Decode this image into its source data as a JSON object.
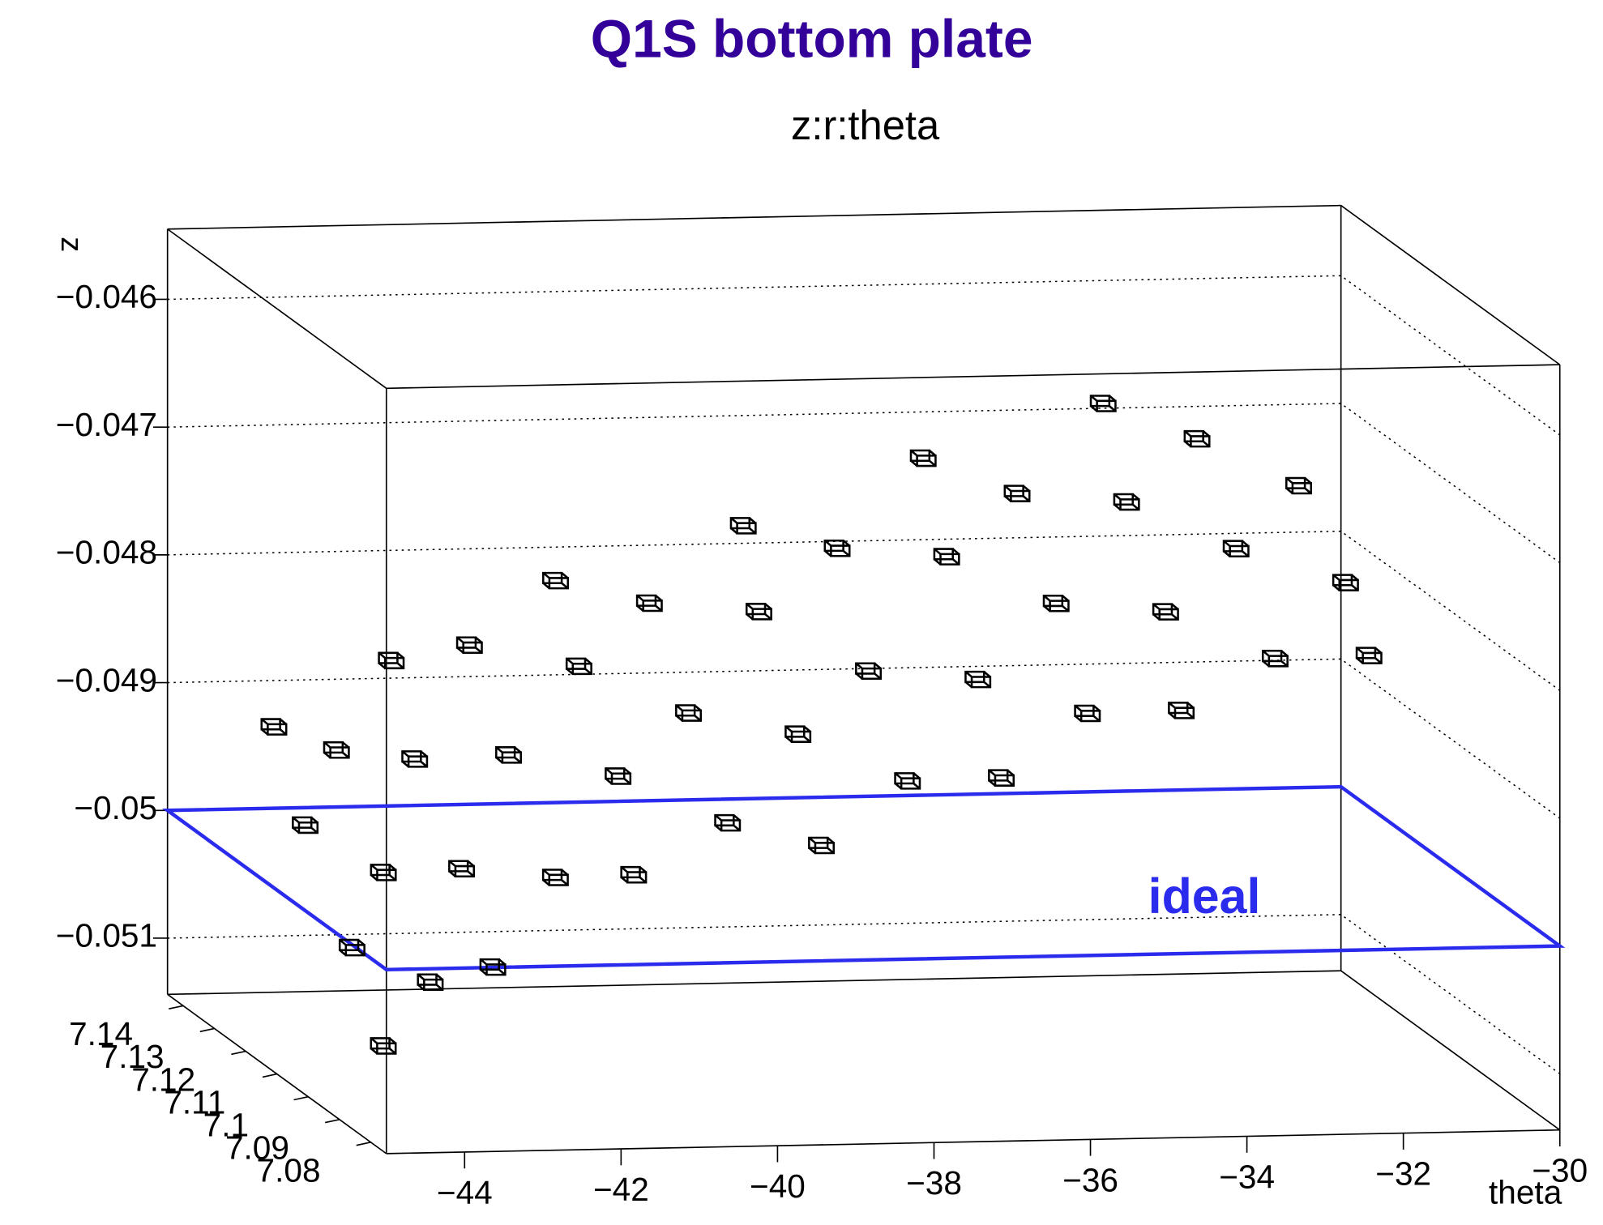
{
  "chart_data": {
    "type": "box3d",
    "title": "Q1S bottom plate",
    "subtitle": "z:r:theta",
    "x_label": "theta",
    "z_label": "z",
    "title_color": "#330099",
    "box_color": "#000000",
    "grid": true,
    "xlim": [
      -45,
      -30
    ],
    "xticks": [
      {
        "value": -44,
        "label": "−44"
      },
      {
        "value": -42,
        "label": "−42"
      },
      {
        "value": -40,
        "label": "−40"
      },
      {
        "value": -38,
        "label": "−38"
      },
      {
        "value": -36,
        "label": "−36"
      },
      {
        "value": -34,
        "label": "−34"
      },
      {
        "value": -32,
        "label": "−32"
      },
      {
        "value": -30,
        "label": "−30"
      }
    ],
    "rlim": [
      7.075,
      7.145
    ],
    "rticks": [
      7.08,
      7.09,
      7.1,
      7.11,
      7.12,
      7.13,
      7.14
    ],
    "zlim": [
      -0.05144,
      -0.04545
    ],
    "zticks": [
      {
        "value": -0.046,
        "label": "−0.046"
      },
      {
        "value": -0.047,
        "label": "−0.047"
      },
      {
        "value": -0.048,
        "label": "−0.048"
      },
      {
        "value": -0.049,
        "label": "−0.049"
      },
      {
        "value": -0.05,
        "label": "−0.05"
      },
      {
        "value": -0.051,
        "label": "−0.051"
      }
    ],
    "ideal_label": "ideal",
    "ideal_z": -0.05,
    "ideal_color": "#2b2bee",
    "points": {
      "theta": [
        -44.6,
        -44.4,
        -44.2,
        -44.0,
        -43.8,
        -43.6,
        -43.4,
        -43.2,
        -43.0,
        -42.8,
        -42.5,
        -42.2,
        -42.0,
        -41.7,
        -41.4,
        -41.0,
        -40.7,
        -40.4,
        -40.0,
        -39.7,
        -39.4,
        -39.0,
        -38.7,
        -38.4,
        -38.0,
        -37.7,
        -37.4,
        -37.0,
        -36.7,
        -36.4,
        -36.0,
        -35.7,
        -35.4,
        -35.0,
        -34.7,
        -34.4,
        -34.0,
        -33.7,
        -33.4,
        -33.0,
        -32.7,
        -32.4,
        -32.0,
        -31.7,
        -31.5
      ],
      "r": [
        7.085,
        7.1,
        7.12,
        7.135,
        7.09,
        7.11,
        7.13,
        7.085,
        7.1,
        7.12,
        7.135,
        7.09,
        7.11,
        7.13,
        7.085,
        7.1,
        7.12,
        7.135,
        7.09,
        7.11,
        7.13,
        7.085,
        7.1,
        7.12,
        7.135,
        7.09,
        7.11,
        7.13,
        7.085,
        7.1,
        7.12,
        7.135,
        7.09,
        7.11,
        7.13,
        7.085,
        7.1,
        7.12,
        7.135,
        7.09,
        7.11,
        7.13,
        7.085,
        7.1,
        7.12
      ],
      "z": [
        -0.0508,
        -0.0503,
        -0.0497,
        -0.0492,
        -0.0504,
        -0.0499,
        -0.0493,
        -0.0502,
        -0.0497,
        -0.0492,
        -0.0487,
        -0.0496,
        -0.049,
        -0.0485,
        -0.0495,
        -0.049,
        -0.0485,
        -0.0481,
        -0.0492,
        -0.0487,
        -0.0482,
        -0.0493,
        -0.0487,
        -0.0481,
        -0.0477,
        -0.0489,
        -0.0484,
        -0.0478,
        -0.0488,
        -0.0483,
        -0.0477,
        -0.0472,
        -0.0484,
        -0.0479,
        -0.0474,
        -0.0483,
        -0.0478,
        -0.0473,
        -0.0468,
        -0.048,
        -0.0475,
        -0.047,
        -0.0479,
        -0.0476,
        -0.0472
      ]
    }
  }
}
